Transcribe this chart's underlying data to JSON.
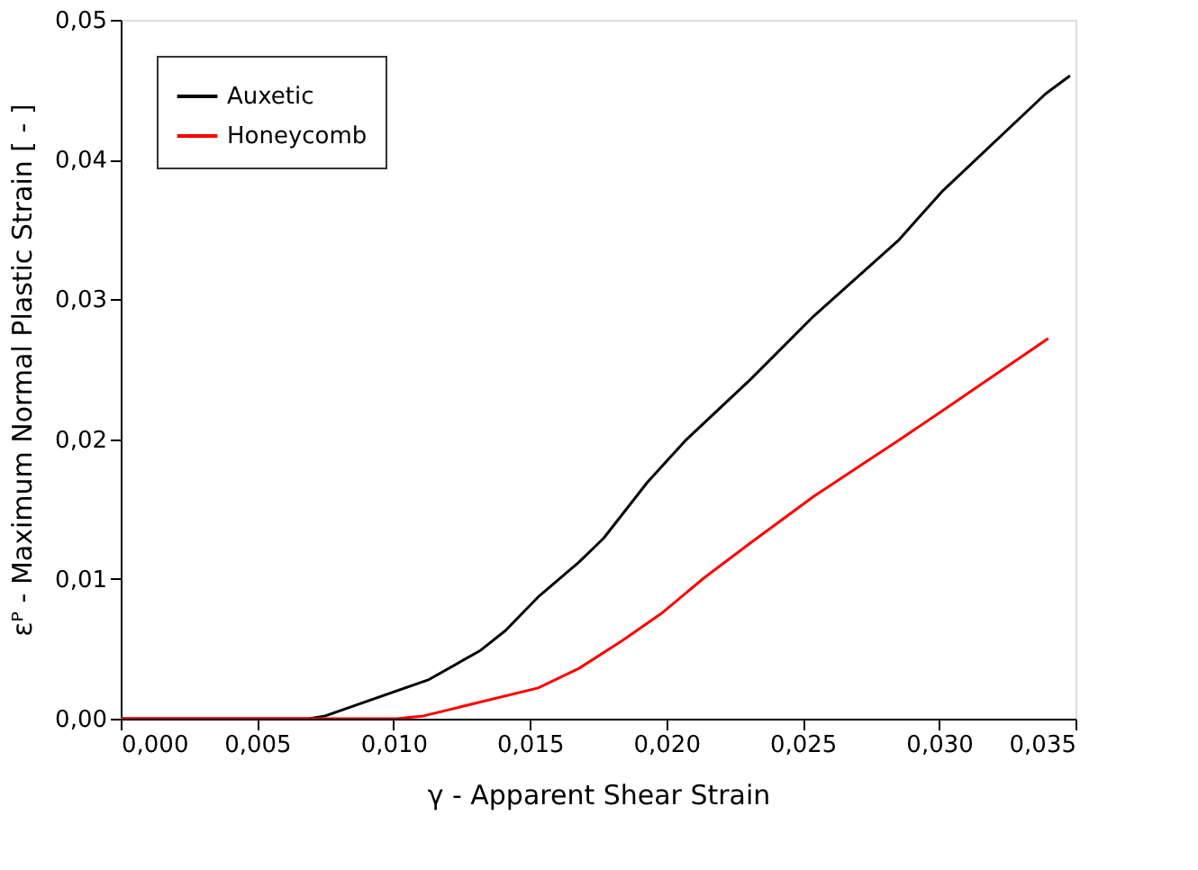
{
  "chart_data": {
    "type": "line",
    "xlabel": "γ - Apparent Shear Strain",
    "ylabel": "εᴾ - Maximum Normal Plastic Strain [ - ]",
    "xlim": [
      0,
      0.035
    ],
    "ylim": [
      0,
      0.05
    ],
    "xticks": [
      {
        "value": 0,
        "label": "0,000"
      },
      {
        "value": 0.005,
        "label": "0,005"
      },
      {
        "value": 0.01,
        "label": "0,010"
      },
      {
        "value": 0.015,
        "label": "0,015"
      },
      {
        "value": 0.02,
        "label": "0,020"
      },
      {
        "value": 0.025,
        "label": "0,025"
      },
      {
        "value": 0.03,
        "label": "0,030"
      },
      {
        "value": 0.035,
        "label": "0,035"
      }
    ],
    "yticks": [
      {
        "value": 0,
        "label": "0,00"
      },
      {
        "value": 0.01,
        "label": "0,01"
      },
      {
        "value": 0.02,
        "label": "0,02"
      },
      {
        "value": 0.03,
        "label": "0,03"
      },
      {
        "value": 0.04,
        "label": "0,04"
      },
      {
        "value": 0.05,
        "label": "0,05"
      }
    ],
    "grid": false,
    "legend": "top left",
    "marker": "none",
    "line_style": "solid",
    "series": [
      {
        "name": "Auxetic",
        "color": "#000000",
        "x": [
          0,
          0.0069,
          0.0075,
          0.0113,
          0.0132,
          0.0141,
          0.0153,
          0.0168,
          0.0177,
          0.0193,
          0.0207,
          0.0231,
          0.0254,
          0.0285,
          0.0301,
          0.0339,
          0.0348
        ],
        "values": [
          0,
          0,
          0.0002,
          0.0028,
          0.0049,
          0.0063,
          0.0087,
          0.0112,
          0.0129,
          0.0169,
          0.0199,
          0.0243,
          0.0288,
          0.0342,
          0.0377,
          0.0447,
          0.046
        ]
      },
      {
        "name": "Honeycomb",
        "color": "#ff0000",
        "x": [
          0,
          0.0101,
          0.0111,
          0.0153,
          0.0168,
          0.0184,
          0.0198,
          0.0214,
          0.0231,
          0.0254,
          0.0285,
          0.0301,
          0.034
        ],
        "values": [
          0,
          0,
          0.0002,
          0.0022,
          0.0036,
          0.0056,
          0.0075,
          0.0101,
          0.0126,
          0.0159,
          0.0199,
          0.022,
          0.0272
        ]
      }
    ]
  }
}
